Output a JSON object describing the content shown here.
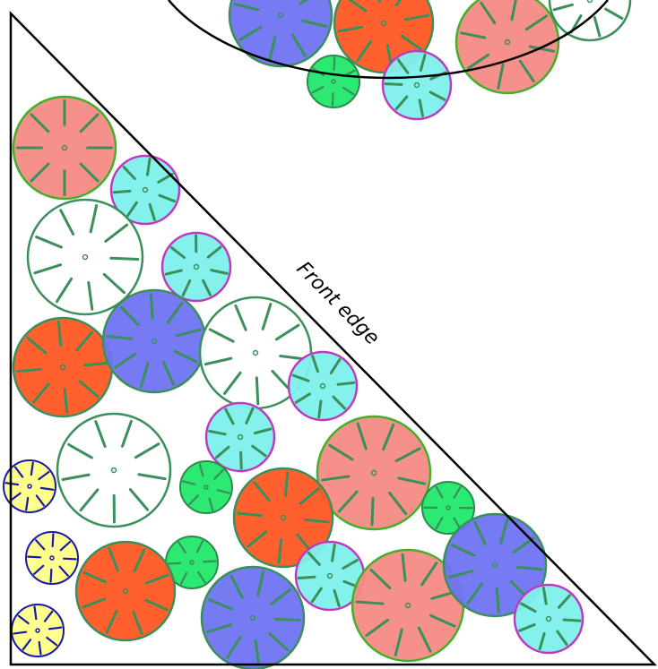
{
  "label": "Front edge",
  "colors": {
    "outline": "#000000",
    "spoke": "#3a8f5a",
    "pink": {
      "fill": "#f58a84",
      "stroke": "#43b02a"
    },
    "white": {
      "fill": "#ffffff",
      "stroke": "#3a8f5a"
    },
    "cyan": {
      "fill": "#7ef0ec",
      "stroke": "#c037c0"
    },
    "blue": {
      "fill": "#6f74f2",
      "stroke": "#3a8f5a"
    },
    "orange": {
      "fill": "#ff5722",
      "stroke": "#3a8f5a"
    },
    "green": {
      "fill": "#20e86a",
      "stroke": "#2e8b4a"
    },
    "yellow": {
      "fill": "#ffff88",
      "stroke": "#1a1aa8",
      "spoke": "#1a1aa8"
    }
  },
  "gears": [
    {
      "kind": "pink",
      "spokes": 8
    },
    {
      "kind": "cyan",
      "spokes": 7
    },
    {
      "kind": "white",
      "spokes": 9
    },
    {
      "kind": "cyan",
      "spokes": 7
    },
    {
      "kind": "orange",
      "spokes": 8
    },
    {
      "kind": "blue",
      "spokes": 9
    },
    {
      "kind": "white",
      "spokes": 9
    },
    {
      "kind": "cyan",
      "spokes": 7
    },
    {
      "kind": "white",
      "spokes": 9
    },
    {
      "kind": "cyan",
      "spokes": 7
    },
    {
      "kind": "pink",
      "spokes": 9
    },
    {
      "kind": "yellow",
      "spokes": 8
    },
    {
      "kind": "green",
      "spokes": 6
    },
    {
      "kind": "orange",
      "spokes": 8
    },
    {
      "kind": "green",
      "spokes": 6
    },
    {
      "kind": "yellow",
      "spokes": 8
    },
    {
      "kind": "orange",
      "spokes": 8
    },
    {
      "kind": "green",
      "spokes": 6
    },
    {
      "kind": "cyan",
      "spokes": 7
    },
    {
      "kind": "blue",
      "spokes": 9
    },
    {
      "kind": "pink",
      "spokes": 9
    },
    {
      "kind": "blue",
      "spokes": 9
    },
    {
      "kind": "cyan",
      "spokes": 7
    },
    {
      "kind": "yellow",
      "spokes": 8
    },
    {
      "kind": "blue",
      "spokes": 8
    },
    {
      "kind": "orange",
      "spokes": 8
    },
    {
      "kind": "pink",
      "spokes": 8
    },
    {
      "kind": "green",
      "spokes": 6
    },
    {
      "kind": "cyan",
      "spokes": 7
    },
    {
      "kind": "white",
      "spokes": 8
    }
  ]
}
